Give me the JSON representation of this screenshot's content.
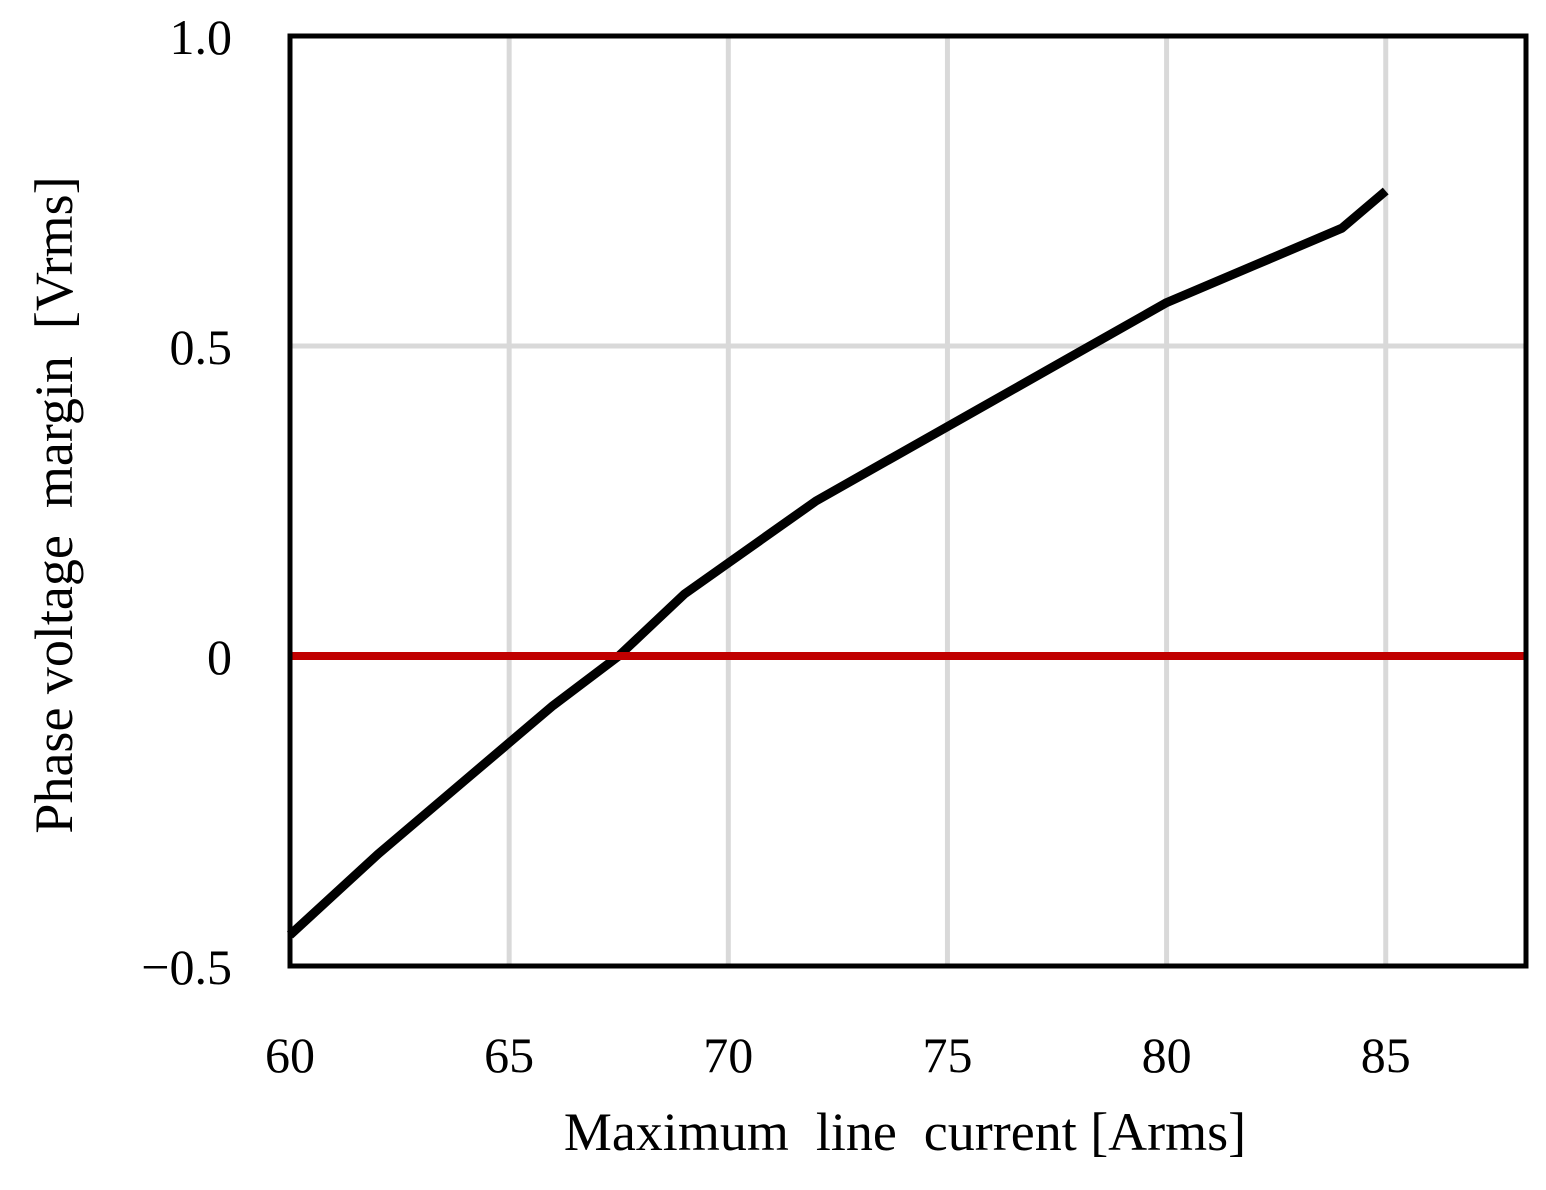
{
  "chart_data": {
    "type": "line",
    "title": "",
    "xlabel": "Maximum  line  current [Arms]",
    "ylabel": "Phase voltage  margin  [Vrms]",
    "xlim": [
      60,
      88.2
    ],
    "ylim": [
      -0.5,
      1.0
    ],
    "x_ticks": [
      60,
      65,
      70,
      75,
      80,
      85
    ],
    "x_tick_labels": [
      "60",
      "65",
      "70",
      "75",
      "80",
      "85"
    ],
    "y_ticks": [
      -0.5,
      0,
      0.5,
      1.0
    ],
    "y_tick_labels": [
      "−0.5",
      "0",
      "0.5",
      "1.0"
    ],
    "grid": true,
    "legend": "none",
    "series": [
      {
        "color": "#000000",
        "x": [
          60,
          62,
          64,
          66,
          67.5,
          69,
          70,
          72,
          74,
          76,
          78,
          80,
          82,
          84,
          85
        ],
        "y": [
          -0.45,
          -0.32,
          -0.2,
          -0.08,
          0.0,
          0.1,
          0.15,
          0.25,
          0.33,
          0.41,
          0.49,
          0.57,
          0.63,
          0.69,
          0.75
        ]
      },
      {
        "color": "#c00000",
        "x": [
          60,
          88.2
        ],
        "y": [
          0,
          0
        ]
      }
    ]
  }
}
